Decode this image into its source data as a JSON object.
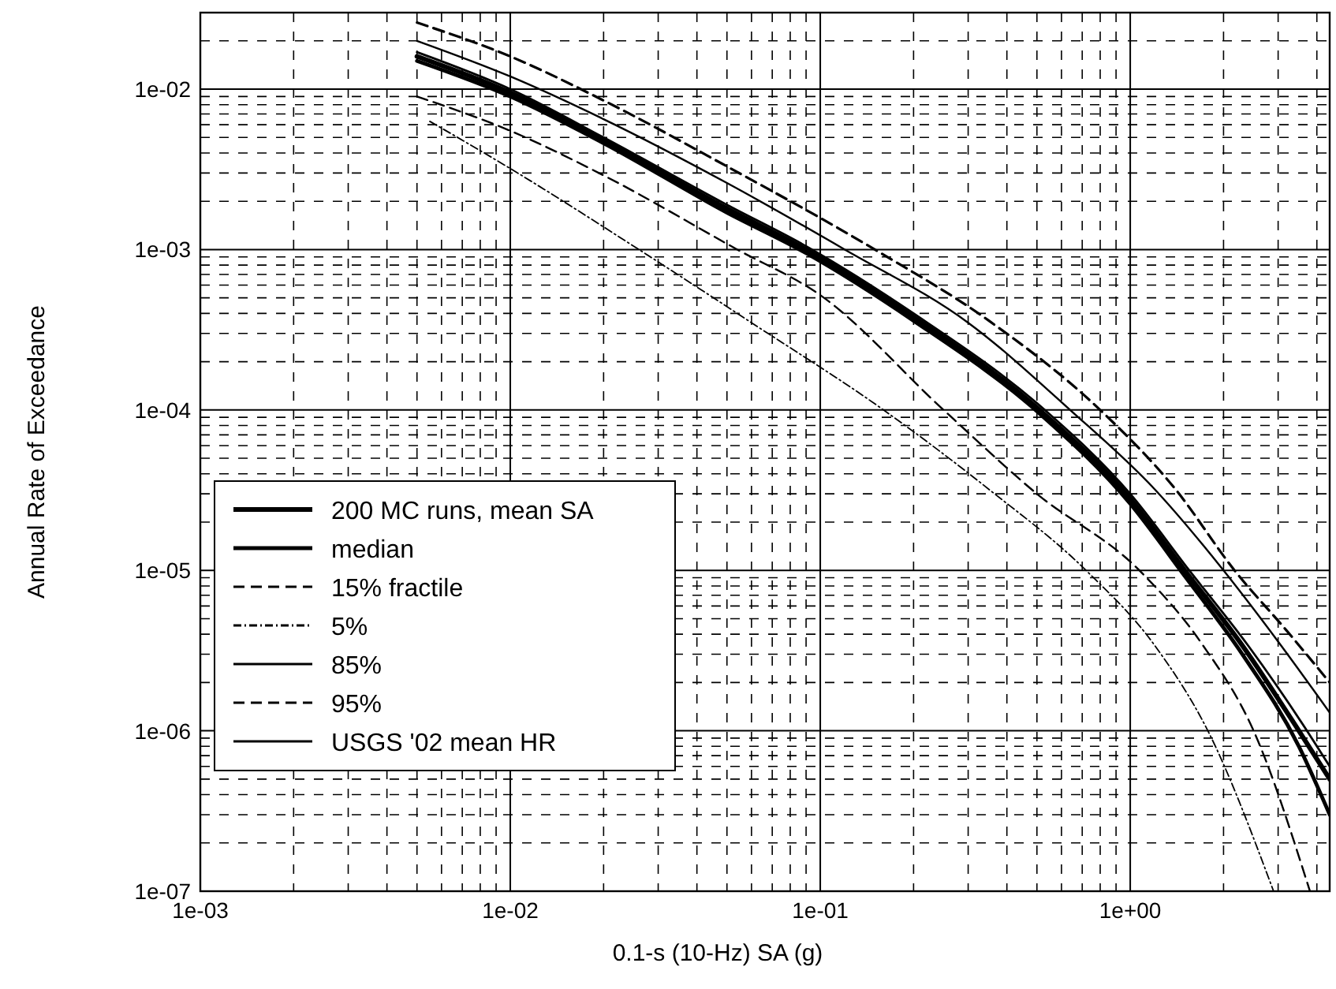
{
  "chart_data": {
    "type": "line",
    "xlabel": "0.1-s (10-Hz) SA (g)",
    "ylabel": "Annual Rate of Exceedance",
    "log": "xy",
    "grid": true,
    "legend": "left",
    "xlim": [
      0.001,
      4.4
    ],
    "xticks": [
      {
        "value": 0.001,
        "label": "1e-03"
      },
      {
        "value": 0.01,
        "label": "1e-02"
      },
      {
        "value": 0.1,
        "label": "1e-01"
      },
      {
        "value": 1,
        "label": "1e+00"
      }
    ],
    "ylim": [
      1e-07,
      0.03
    ],
    "yticks": [
      {
        "value": 1e-07,
        "label": "1e-07"
      },
      {
        "value": 1e-06,
        "label": "1e-06"
      },
      {
        "value": 1e-05,
        "label": "1e-05"
      },
      {
        "value": 0.0001,
        "label": "1e-04"
      },
      {
        "value": 0.001,
        "label": "1e-03"
      },
      {
        "value": 0.01,
        "label": "1e-02"
      }
    ],
    "series": [
      {
        "name": "200 MC runs, mean SA",
        "color": "#000000",
        "line_style": "solid",
        "x": [
          0.005,
          0.01,
          0.02,
          0.05,
          0.09,
          0.2,
          0.51,
          1.0,
          1.5,
          2.3,
          3.5,
          4.4
        ],
        "values": [
          0.016,
          0.0095,
          0.0048,
          0.0018,
          0.001,
          0.00038,
          0.0001,
          2.8e-05,
          1e-05,
          3.4e-06,
          1e-06,
          5e-07
        ]
      },
      {
        "name": "median",
        "color": "#000000",
        "line_style": "solid",
        "x": [
          0.005,
          0.01,
          0.02,
          0.05,
          0.09,
          0.2,
          0.51,
          1.0,
          1.5,
          2.3,
          3.5,
          4.4
        ],
        "values": [
          0.015,
          0.009,
          0.0046,
          0.0017,
          0.00095,
          0.00036,
          9.5e-05,
          2.6e-05,
          9.2e-06,
          3e-06,
          8e-07,
          3e-07
        ]
      },
      {
        "name": "15% fractile",
        "color": "#000000",
        "line_style": "dashed",
        "x": [
          0.005,
          0.01,
          0.02,
          0.054,
          0.1,
          0.25,
          0.5,
          1.07,
          1.7,
          2.5,
          3.8
        ],
        "values": [
          0.009,
          0.0055,
          0.0029,
          0.001,
          0.00052,
          0.0001,
          3e-05,
          1e-05,
          3.5e-06,
          1e-06,
          1e-07
        ]
      },
      {
        "name": "5%",
        "color": "#000000",
        "line_style": "dotted",
        "x": [
          0.0055,
          0.01,
          0.026,
          0.06,
          0.16,
          0.35,
          0.72,
          1.2,
          1.78,
          2.9
        ],
        "values": [
          0.0063,
          0.0032,
          0.001,
          0.00035,
          0.0001,
          3.2e-05,
          1e-05,
          3.4e-06,
          1e-06,
          1e-07
        ]
      },
      {
        "name": "85%",
        "color": "#000000",
        "line_style": "solid",
        "x": [
          0.005,
          0.01,
          0.02,
          0.05,
          0.12,
          0.3,
          0.64,
          1.2,
          2.0,
          3.0,
          4.4
        ],
        "values": [
          0.02,
          0.012,
          0.0065,
          0.0026,
          0.001,
          0.00035,
          0.0001,
          3.2e-05,
          1e-05,
          3.6e-06,
          1.3e-06
        ]
      },
      {
        "name": "95%",
        "color": "#000000",
        "line_style": "dashed",
        "x": [
          0.005,
          0.01,
          0.02,
          0.05,
          0.15,
          0.35,
          0.8,
          1.4,
          2.17,
          3.2,
          4.4
        ],
        "values": [
          0.026,
          0.016,
          0.0085,
          0.0033,
          0.001,
          0.00036,
          0.0001,
          3.2e-05,
          1e-05,
          4.2e-06,
          2e-06
        ]
      },
      {
        "name": "USGS '02 mean HR",
        "color": "#000000",
        "line_style": "solid",
        "x": [
          0.005,
          0.01,
          0.02,
          0.05,
          0.09,
          0.2,
          0.53,
          1.0,
          1.55,
          2.4,
          3.6,
          4.4
        ],
        "values": [
          0.017,
          0.01,
          0.005,
          0.0019,
          0.00105,
          0.0004,
          0.0001,
          3e-05,
          1e-05,
          3.4e-06,
          1.1e-06,
          6e-07
        ]
      }
    ]
  }
}
